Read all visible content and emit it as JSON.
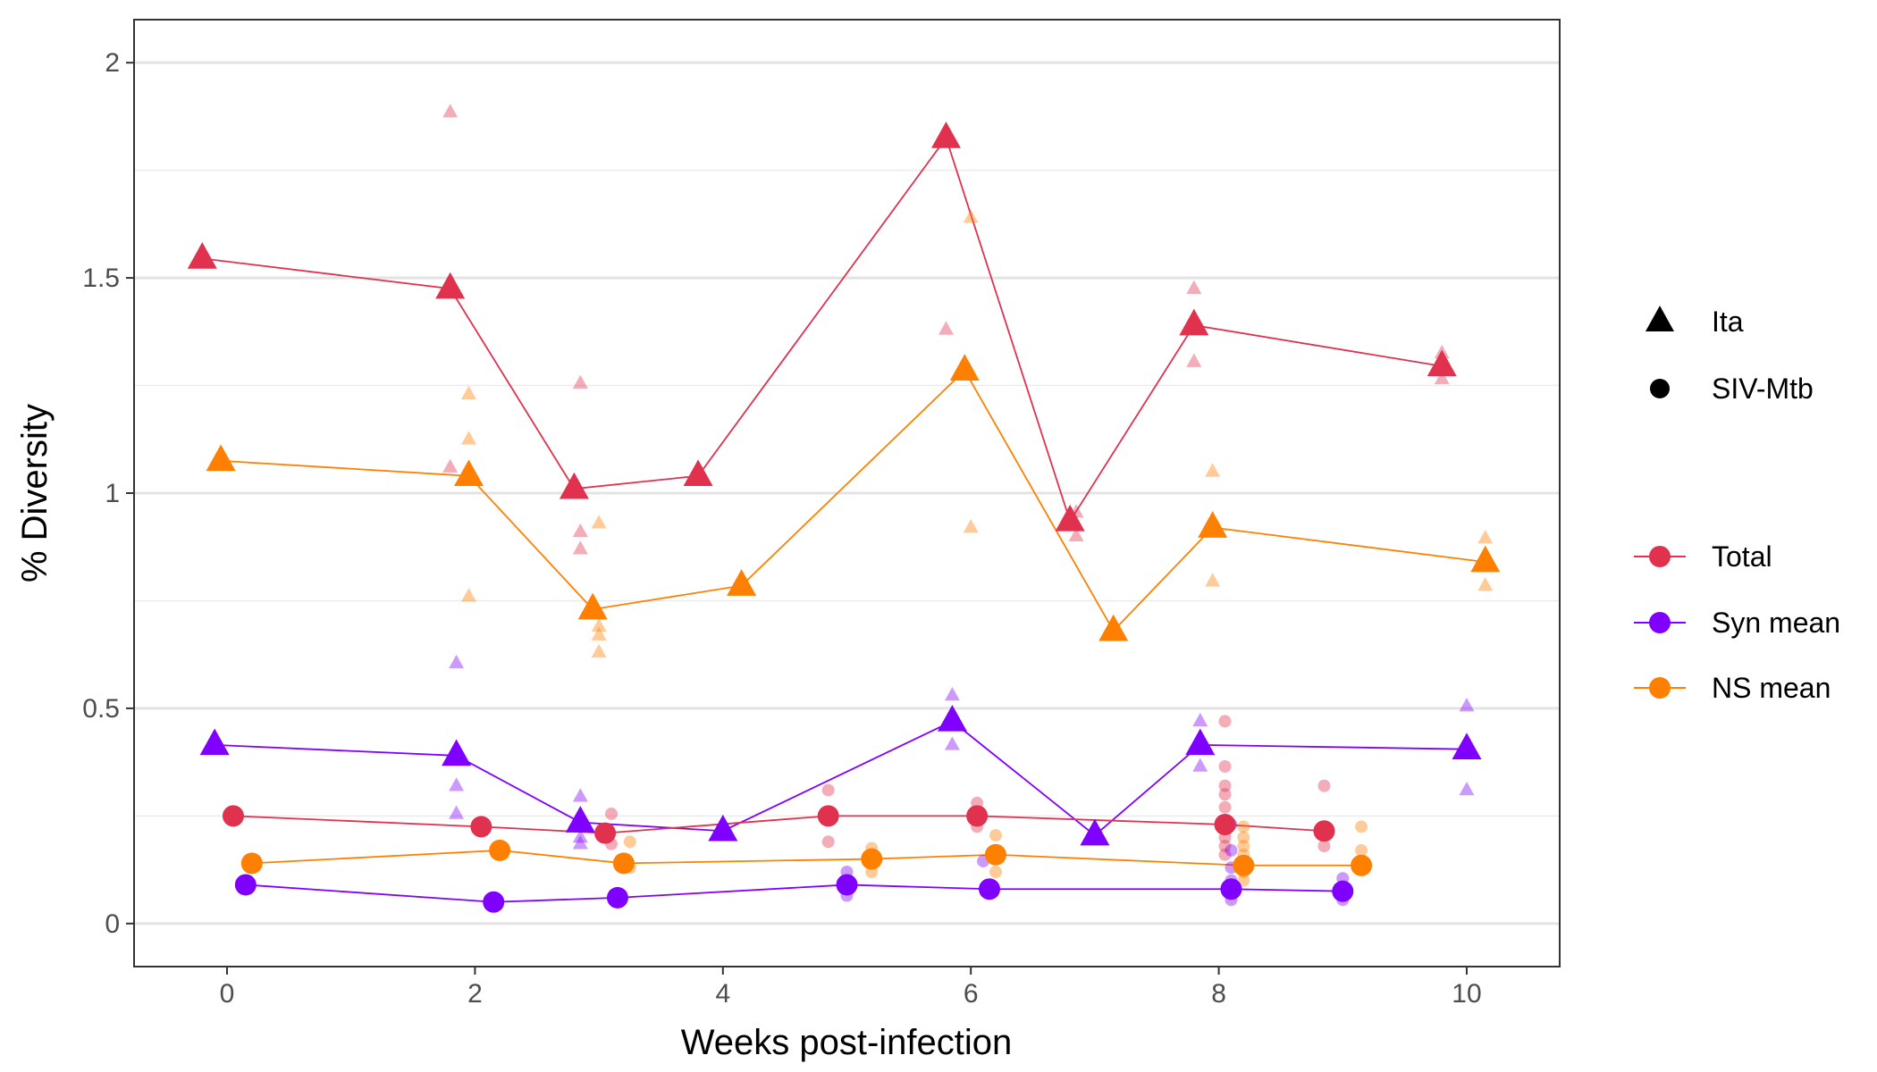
{
  "chart_data": {
    "type": "line",
    "title": "",
    "xlabel": "Weeks post-infection",
    "ylabel": "% Diversity",
    "xlim": [
      -0.75,
      10.75
    ],
    "ylim": [
      -0.1,
      2.1
    ],
    "xticks": [
      {
        "value": 0,
        "label": "0"
      },
      {
        "value": 2,
        "label": "2"
      },
      {
        "value": 4,
        "label": "4"
      },
      {
        "value": 6,
        "label": "6"
      },
      {
        "value": 8,
        "label": "8"
      },
      {
        "value": 10,
        "label": "10"
      }
    ],
    "yticks": [
      {
        "value": 0,
        "label": "0"
      },
      {
        "value": 0.5,
        "label": "0.5"
      },
      {
        "value": 1,
        "label": "1"
      },
      {
        "value": 1.5,
        "label": "1.5"
      },
      {
        "value": 2,
        "label": "2"
      }
    ],
    "grid": "horizontal",
    "legend_position": "right",
    "colors": {
      "Total": "#e0314f",
      "Syn mean": "#8000ff",
      "NS mean": "#ff8000"
    },
    "legend": {
      "shape": [
        {
          "label": "Ita",
          "shape": "triangle"
        },
        {
          "label": "SIV-Mtb",
          "shape": "circle"
        }
      ],
      "color": [
        {
          "label": "Total",
          "color": "#e0314f"
        },
        {
          "label": "Syn mean",
          "color": "#8000ff"
        },
        {
          "label": "NS mean",
          "color": "#ff8000"
        }
      ]
    },
    "series": [
      {
        "group": "Ita",
        "metric": "Total",
        "shape": "triangle",
        "color": "#e0314f",
        "x": [
          -0.2,
          1.8,
          2.8,
          3.8,
          5.8,
          6.8,
          7.8,
          9.8
        ],
        "y": [
          1.545,
          1.475,
          1.01,
          1.04,
          1.825,
          0.935,
          1.39,
          1.295
        ]
      },
      {
        "group": "Ita",
        "metric": "NS mean",
        "shape": "triangle",
        "color": "#ff8000",
        "x": [
          -0.05,
          1.95,
          2.95,
          4.15,
          5.95,
          7.15,
          7.95,
          10.15
        ],
        "y": [
          1.075,
          1.04,
          0.73,
          0.785,
          1.285,
          0.68,
          0.92,
          0.84
        ]
      },
      {
        "group": "Ita",
        "metric": "Syn mean",
        "shape": "triangle",
        "color": "#8000ff",
        "x": [
          -0.1,
          1.85,
          2.85,
          4.0,
          5.85,
          7.0,
          7.85,
          10.0
        ],
        "y": [
          0.415,
          0.39,
          0.235,
          0.215,
          0.47,
          0.205,
          0.415,
          0.405
        ]
      },
      {
        "group": "SIV-Mtb",
        "metric": "Total",
        "shape": "circle",
        "color": "#e0314f",
        "x": [
          0.05,
          2.05,
          3.05,
          4.85,
          6.05,
          8.05,
          8.85
        ],
        "y": [
          0.25,
          0.225,
          0.21,
          0.25,
          0.25,
          0.23,
          0.215
        ]
      },
      {
        "group": "SIV-Mtb",
        "metric": "NS mean",
        "shape": "circle",
        "color": "#ff8000",
        "x": [
          0.2,
          2.2,
          3.2,
          5.2,
          6.2,
          8.2,
          9.15
        ],
        "y": [
          0.14,
          0.17,
          0.14,
          0.15,
          0.16,
          0.135,
          0.135
        ]
      },
      {
        "group": "SIV-Mtb",
        "metric": "Syn mean",
        "shape": "circle",
        "color": "#8000ff",
        "x": [
          0.15,
          2.15,
          3.15,
          5.0,
          6.15,
          8.1,
          9.0
        ],
        "y": [
          0.09,
          0.05,
          0.06,
          0.09,
          0.08,
          0.08,
          0.075
        ]
      }
    ],
    "individual_points": [
      {
        "shape": "triangle",
        "color": "#e0314f",
        "points": [
          [
            1.8,
            1.885
          ],
          [
            1.8,
            1.06
          ],
          [
            2.85,
            1.255
          ],
          [
            2.85,
            0.91
          ],
          [
            2.85,
            0.87
          ],
          [
            5.8,
            1.38
          ],
          [
            7.8,
            1.475
          ],
          [
            7.8,
            1.305
          ],
          [
            6.85,
            0.955
          ],
          [
            6.85,
            0.9
          ],
          [
            9.8,
            1.325
          ],
          [
            9.8,
            1.265
          ]
        ]
      },
      {
        "shape": "triangle",
        "color": "#ff8000",
        "points": [
          [
            1.95,
            1.23
          ],
          [
            1.95,
            1.125
          ],
          [
            1.95,
            0.76
          ],
          [
            3.0,
            0.93
          ],
          [
            3.0,
            0.69
          ],
          [
            3.0,
            0.67
          ],
          [
            3.0,
            0.63
          ],
          [
            6.0,
            1.64
          ],
          [
            6.0,
            0.92
          ],
          [
            7.95,
            1.05
          ],
          [
            7.95,
            0.795
          ],
          [
            10.15,
            0.895
          ],
          [
            10.15,
            0.785
          ]
        ]
      },
      {
        "shape": "triangle",
        "color": "#8000ff",
        "points": [
          [
            1.85,
            0.605
          ],
          [
            1.85,
            0.32
          ],
          [
            1.85,
            0.255
          ],
          [
            2.85,
            0.295
          ],
          [
            2.85,
            0.2
          ],
          [
            2.85,
            0.185
          ],
          [
            5.85,
            0.53
          ],
          [
            5.85,
            0.415
          ],
          [
            7.85,
            0.47
          ],
          [
            7.85,
            0.365
          ],
          [
            10.0,
            0.505
          ],
          [
            10.0,
            0.31
          ]
        ]
      },
      {
        "shape": "circle",
        "color": "#e0314f",
        "points": [
          [
            3.1,
            0.255
          ],
          [
            3.1,
            0.185
          ],
          [
            4.85,
            0.31
          ],
          [
            4.85,
            0.19
          ],
          [
            6.05,
            0.28
          ],
          [
            6.05,
            0.225
          ],
          [
            8.05,
            0.47
          ],
          [
            8.05,
            0.365
          ],
          [
            8.05,
            0.32
          ],
          [
            8.05,
            0.3
          ],
          [
            8.05,
            0.27
          ],
          [
            8.05,
            0.24
          ],
          [
            8.05,
            0.2
          ],
          [
            8.05,
            0.18
          ],
          [
            8.05,
            0.16
          ],
          [
            8.85,
            0.32
          ],
          [
            8.85,
            0.18
          ]
        ]
      },
      {
        "shape": "circle",
        "color": "#ff8000",
        "points": [
          [
            3.25,
            0.19
          ],
          [
            3.25,
            0.13
          ],
          [
            5.2,
            0.175
          ],
          [
            5.2,
            0.12
          ],
          [
            6.2,
            0.205
          ],
          [
            6.2,
            0.12
          ],
          [
            8.2,
            0.225
          ],
          [
            8.2,
            0.2
          ],
          [
            8.2,
            0.18
          ],
          [
            8.2,
            0.16
          ],
          [
            8.2,
            0.12
          ],
          [
            8.2,
            0.1
          ],
          [
            9.15,
            0.225
          ],
          [
            9.15,
            0.17
          ],
          [
            9.15,
            0.125
          ]
        ]
      },
      {
        "shape": "circle",
        "color": "#8000ff",
        "points": [
          [
            5.0,
            0.12
          ],
          [
            5.0,
            0.065
          ],
          [
            6.1,
            0.145
          ],
          [
            8.1,
            0.23
          ],
          [
            8.1,
            0.17
          ],
          [
            8.1,
            0.13
          ],
          [
            8.1,
            0.1
          ],
          [
            8.1,
            0.07
          ],
          [
            8.1,
            0.055
          ],
          [
            9.0,
            0.105
          ],
          [
            9.0,
            0.055
          ]
        ]
      }
    ]
  }
}
